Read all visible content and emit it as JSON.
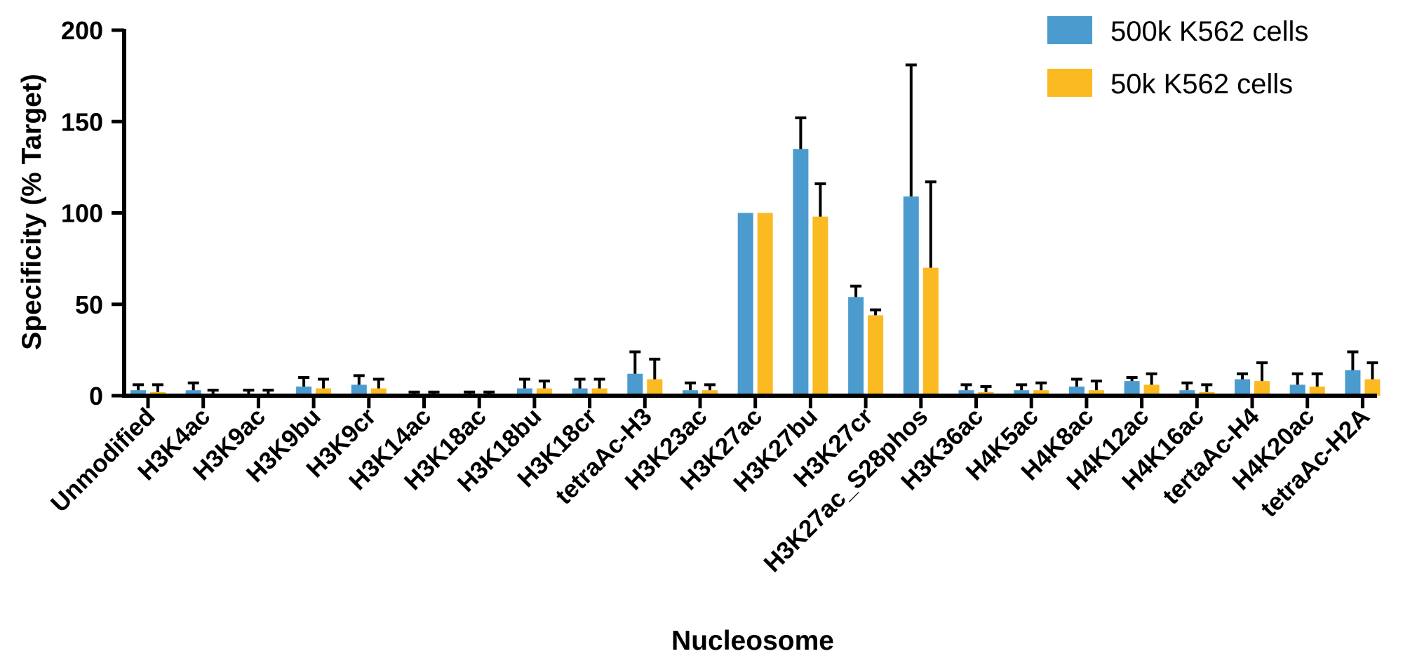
{
  "chart_data": {
    "type": "bar",
    "title": "",
    "xlabel": "Nucleosome",
    "ylabel": "Specificity (% Target)",
    "ylim": [
      0,
      200
    ],
    "yticks": [
      0,
      50,
      100,
      150,
      200
    ],
    "legend_position": "top-right",
    "categories": [
      "Unmodified",
      "H3K4ac",
      "H3K9ac",
      "H3K9bu",
      "H3K9cr",
      "H3K14ac",
      "H3K18ac",
      "H3K18bu",
      "H3K18cr",
      "tetraAc-H3",
      "H3K23ac",
      "H3K27ac",
      "H3K27bu",
      "H3K27cr",
      "H3K27ac_S28phos",
      "H3K36ac",
      "H4K5ac",
      "H4K8ac",
      "H4K12ac",
      "H4K16ac",
      "tertaAc-H4",
      "H4K20ac",
      "tetraAc-H2A"
    ],
    "series": [
      {
        "name": "500k K562 cells",
        "color": "#4b9bcf",
        "values": [
          3,
          3,
          1,
          5,
          6,
          1,
          1,
          4,
          4,
          12,
          3,
          100,
          135,
          54,
          109,
          3,
          3,
          5,
          8,
          3,
          9,
          6,
          14
        ],
        "errors": [
          3,
          4,
          2,
          5,
          5,
          1,
          1,
          5,
          5,
          12,
          4,
          0,
          17,
          6,
          72,
          3,
          3,
          4,
          2,
          4,
          3,
          6,
          10
        ]
      },
      {
        "name": "50k K562 cells",
        "color": "#fbba22",
        "values": [
          2,
          1,
          1,
          4,
          4,
          1,
          1,
          4,
          4,
          9,
          3,
          100,
          98,
          44,
          70,
          2,
          3,
          3,
          6,
          2,
          8,
          5,
          9
        ],
        "errors": [
          4,
          2,
          2,
          5,
          5,
          1,
          1,
          4,
          5,
          11,
          3,
          0,
          18,
          3,
          47,
          3,
          4,
          5,
          6,
          4,
          10,
          7,
          9
        ]
      }
    ]
  }
}
